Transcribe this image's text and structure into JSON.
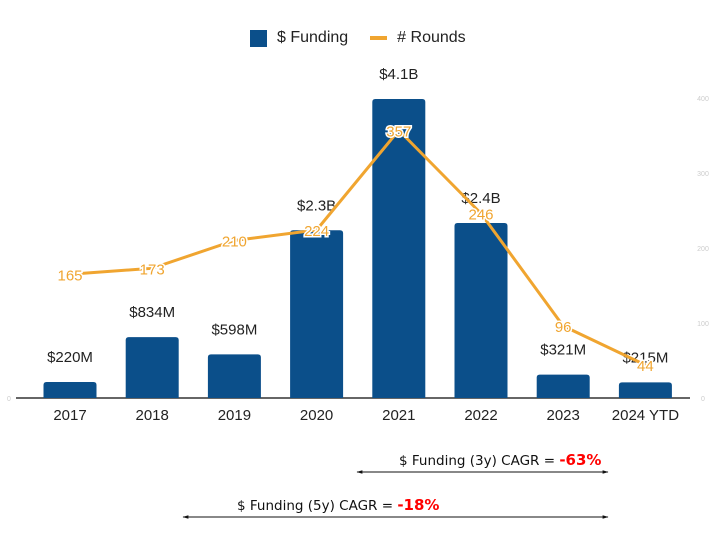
{
  "chart_data": {
    "type": "bar",
    "categories": [
      "2017",
      "2018",
      "2019",
      "2020",
      "2021",
      "2022",
      "2023",
      "2024 YTD"
    ],
    "series": [
      {
        "name": "$ Funding",
        "kind": "bar",
        "axis": "left",
        "color": "#0b4f8a",
        "values": [
          0.22,
          0.834,
          0.598,
          2.3,
          4.1,
          2.4,
          0.321,
          0.215
        ],
        "units": "USD billions",
        "labels": [
          "$220M",
          "$834M",
          "$598M",
          "$2.3B",
          "$4.1B",
          "$2.4B",
          "$321M",
          "$215M"
        ]
      },
      {
        "name": "# Rounds",
        "kind": "line",
        "axis": "right",
        "color": "#f0a530",
        "values": [
          165,
          173,
          210,
          224,
          357,
          246,
          96,
          44
        ],
        "labels": [
          "165",
          "173",
          "210",
          "224",
          "357",
          "246",
          "96",
          "44"
        ]
      }
    ],
    "left_axis": {
      "ylim": [
        0,
        4.1
      ],
      "ticks": [
        "0"
      ]
    },
    "right_axis": {
      "ylim": [
        0,
        400
      ],
      "ticks": [
        "0",
        "100",
        "200",
        "300",
        "400"
      ]
    },
    "legend": {
      "position": "top-center",
      "entries": [
        "$ Funding",
        "# Rounds"
      ]
    },
    "grid": false,
    "title": "",
    "xlabel": "",
    "ylabel": "",
    "annotations": [
      {
        "text": "$ Funding (3y) CAGR = ",
        "value": "-63%",
        "from": "2021",
        "to": "2024 YTD"
      },
      {
        "text": "$ Funding (5y) CAGR = ",
        "value": "-18%",
        "from": "2019",
        "to": "2024 YTD"
      }
    ]
  }
}
